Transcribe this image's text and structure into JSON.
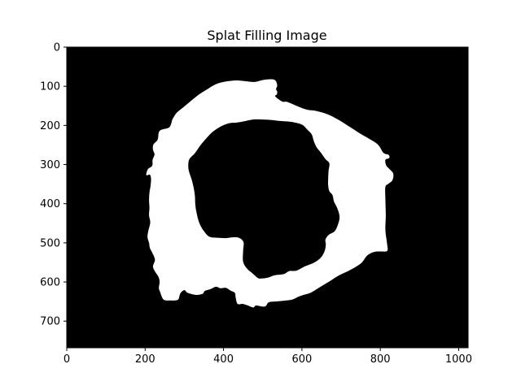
{
  "chart_data": {
    "type": "heatmap",
    "title": "Splat Filling Image",
    "xlabel": "",
    "ylabel": "",
    "xlim": [
      0,
      1024
    ],
    "ylim": [
      768,
      0
    ],
    "x_ticks": [
      0,
      200,
      400,
      600,
      800,
      1000
    ],
    "y_ticks": [
      0,
      100,
      200,
      300,
      400,
      500,
      600,
      700
    ],
    "background_color": "#000000",
    "foreground_color": "#ffffff",
    "grid": false,
    "regions": [
      {
        "name": "outer-ring",
        "fill": "#ffffff",
        "points": [
          [
            523,
            82
          ],
          [
            533,
            86
          ],
          [
            537,
            98
          ],
          [
            534,
            107
          ],
          [
            537,
            114
          ],
          [
            536,
            121
          ],
          [
            532,
            126
          ],
          [
            550,
            139
          ],
          [
            563,
            140
          ],
          [
            591,
            152
          ],
          [
            614,
            160
          ],
          [
            636,
            163
          ],
          [
            664,
            171
          ],
          [
            694,
            186
          ],
          [
            724,
            205
          ],
          [
            752,
            223
          ],
          [
            768,
            232
          ],
          [
            794,
            249
          ],
          [
            808,
            270
          ],
          [
            821,
            275
          ],
          [
            823,
            283
          ],
          [
            813,
            288
          ],
          [
            815,
            302
          ],
          [
            822,
            310
          ],
          [
            833,
            323
          ],
          [
            831,
            340
          ],
          [
            821,
            349
          ],
          [
            813,
            357
          ],
          [
            813,
            389
          ],
          [
            814,
            430
          ],
          [
            813,
            467
          ],
          [
            817,
            500
          ],
          [
            818,
            520
          ],
          [
            803,
            522
          ],
          [
            785,
            523
          ],
          [
            767,
            532
          ],
          [
            751,
            552
          ],
          [
            722,
            570
          ],
          [
            693,
            584
          ],
          [
            668,
            600
          ],
          [
            646,
            613
          ],
          [
            623,
            627
          ],
          [
            604,
            633
          ],
          [
            590,
            638
          ],
          [
            575,
            645
          ],
          [
            552,
            648
          ],
          [
            530,
            650
          ],
          [
            515,
            652
          ],
          [
            509,
            660
          ],
          [
            502,
            663
          ],
          [
            483,
            660
          ],
          [
            476,
            665
          ],
          [
            462,
            660
          ],
          [
            449,
            656
          ],
          [
            436,
            656
          ],
          [
            431,
            640
          ],
          [
            429,
            628
          ],
          [
            418,
            622
          ],
          [
            406,
            615
          ],
          [
            392,
            616
          ],
          [
            381,
            612
          ],
          [
            367,
            618
          ],
          [
            352,
            623
          ],
          [
            347,
            630
          ],
          [
            330,
            633
          ],
          [
            309,
            628
          ],
          [
            300,
            621
          ],
          [
            290,
            629
          ],
          [
            285,
            644
          ],
          [
            277,
            647
          ],
          [
            264,
            647
          ],
          [
            247,
            645
          ],
          [
            238,
            625
          ],
          [
            235,
            615
          ],
          [
            237,
            600
          ],
          [
            234,
            587
          ],
          [
            225,
            573
          ],
          [
            220,
            560
          ],
          [
            225,
            543
          ],
          [
            218,
            525
          ],
          [
            212,
            513
          ],
          [
            210,
            500
          ],
          [
            206,
            486
          ],
          [
            208,
            470
          ],
          [
            213,
            448
          ],
          [
            210,
            430
          ],
          [
            211,
            410
          ],
          [
            210,
            392
          ],
          [
            211,
            372
          ],
          [
            214,
            353
          ],
          [
            215,
            336
          ],
          [
            212,
            326
          ],
          [
            203,
            327
          ],
          [
            207,
            312
          ],
          [
            218,
            303
          ],
          [
            219,
            288
          ],
          [
            224,
            274
          ],
          [
            220,
            262
          ],
          [
            221,
            249
          ],
          [
            232,
            236
          ],
          [
            237,
            214
          ],
          [
            260,
            206
          ],
          [
            266,
            197
          ],
          [
            269,
            186
          ],
          [
            274,
            177
          ],
          [
            281,
            167
          ],
          [
            297,
            154
          ],
          [
            315,
            139
          ],
          [
            336,
            122
          ],
          [
            358,
            108
          ],
          [
            380,
            95
          ],
          [
            405,
            88
          ],
          [
            434,
            85
          ],
          [
            455,
            87
          ],
          [
            479,
            89
          ],
          [
            500,
            84
          ]
        ]
      },
      {
        "name": "inner-hole",
        "fill": "#000000",
        "points": [
          [
            450,
            190
          ],
          [
            475,
            185
          ],
          [
            500,
            185
          ],
          [
            520,
            186
          ],
          [
            548,
            189
          ],
          [
            573,
            191
          ],
          [
            600,
            198
          ],
          [
            614,
            211
          ],
          [
            625,
            223
          ],
          [
            630,
            239
          ],
          [
            637,
            255
          ],
          [
            648,
            269
          ],
          [
            660,
            286
          ],
          [
            670,
            297
          ],
          [
            668,
            316
          ],
          [
            667,
            337
          ],
          [
            667,
            353
          ],
          [
            670,
            368
          ],
          [
            678,
            378
          ],
          [
            682,
            395
          ],
          [
            690,
            411
          ],
          [
            696,
            432
          ],
          [
            693,
            450
          ],
          [
            684,
            470
          ],
          [
            668,
            480
          ],
          [
            660,
            492
          ],
          [
            661,
            504
          ],
          [
            658,
            521
          ],
          [
            648,
            538
          ],
          [
            630,
            551
          ],
          [
            608,
            560
          ],
          [
            586,
            571
          ],
          [
            568,
            572
          ],
          [
            553,
            580
          ],
          [
            530,
            583
          ],
          [
            513,
            589
          ],
          [
            497,
            591
          ],
          [
            488,
            590
          ],
          [
            474,
            578
          ],
          [
            460,
            566
          ],
          [
            450,
            548
          ],
          [
            450,
            520
          ],
          [
            451,
            498
          ],
          [
            439,
            487
          ],
          [
            423,
            486
          ],
          [
            405,
            488
          ],
          [
            384,
            487
          ],
          [
            369,
            486
          ],
          [
            359,
            481
          ],
          [
            350,
            470
          ],
          [
            345,
            463
          ],
          [
            337,
            446
          ],
          [
            331,
            422
          ],
          [
            328,
            402
          ],
          [
            327,
            380
          ],
          [
            324,
            360
          ],
          [
            319,
            339
          ],
          [
            312,
            318
          ],
          [
            310,
            302
          ],
          [
            313,
            286
          ],
          [
            327,
            271
          ],
          [
            341,
            251
          ],
          [
            357,
            232
          ],
          [
            373,
            216
          ],
          [
            394,
            202
          ],
          [
            416,
            194
          ],
          [
            432,
            193
          ]
        ]
      }
    ]
  }
}
